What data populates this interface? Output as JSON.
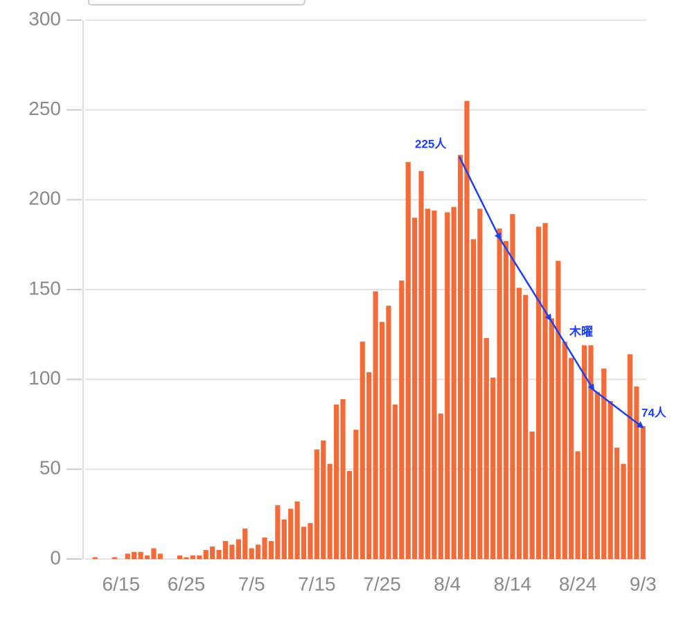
{
  "chart_data": {
    "type": "bar",
    "categories": [
      null,
      null,
      null,
      null,
      null,
      "6/15",
      null,
      null,
      null,
      null,
      null,
      null,
      null,
      null,
      null,
      "6/25",
      null,
      null,
      null,
      null,
      null,
      null,
      null,
      null,
      null,
      "7/5",
      null,
      null,
      null,
      null,
      null,
      null,
      null,
      null,
      null,
      "7/15",
      null,
      null,
      null,
      null,
      null,
      null,
      null,
      null,
      null,
      "7/25",
      null,
      null,
      null,
      null,
      null,
      null,
      null,
      null,
      null,
      "8/4",
      null,
      null,
      null,
      null,
      null,
      null,
      null,
      null,
      null,
      "8/14",
      null,
      null,
      null,
      null,
      null,
      null,
      null,
      null,
      null,
      "8/24",
      null,
      null,
      null,
      null,
      null,
      null,
      null,
      null,
      null,
      "9/3"
    ],
    "values": [
      0,
      1,
      0,
      0,
      1,
      0,
      3,
      4,
      4,
      2,
      6,
      3,
      0,
      0,
      2,
      1,
      2,
      2,
      5,
      7,
      5,
      10,
      8,
      11,
      17,
      6,
      8,
      12,
      10,
      30,
      22,
      28,
      32,
      18,
      20,
      61,
      66,
      53,
      86,
      89,
      49,
      72,
      121,
      104,
      149,
      132,
      141,
      86,
      155,
      221,
      190,
      216,
      195,
      194,
      81,
      193,
      196,
      225,
      255,
      178,
      195,
      123,
      101,
      184,
      177,
      192,
      151,
      147,
      71,
      185,
      187,
      134,
      166,
      121,
      112,
      60,
      119,
      119,
      93,
      106,
      88,
      62,
      53,
      114,
      96,
      74
    ],
    "color": "#f26b38",
    "ylim": [
      0,
      300
    ],
    "yticks": [
      0,
      50,
      100,
      150,
      200,
      250,
      300
    ],
    "grid": true,
    "annotations": [
      "225人",
      "木曜",
      "74人"
    ]
  }
}
